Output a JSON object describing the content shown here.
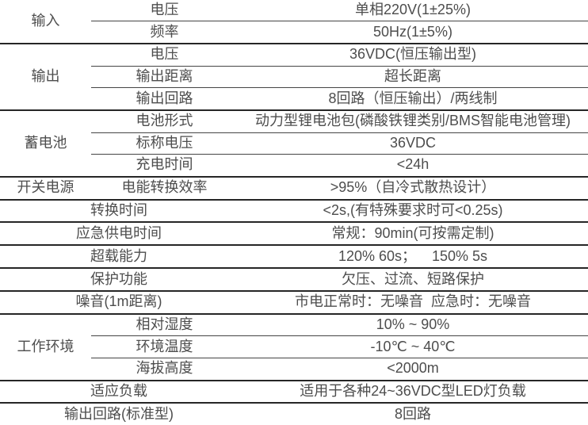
{
  "colors": {
    "background": "#ffffff",
    "text": "#4d4d4d",
    "rule_inner": "#454545",
    "rule_group": "#262626"
  },
  "table": {
    "type": "table",
    "description_columns": [
      "category",
      "parameter",
      "value"
    ],
    "rows": [
      {
        "category": "输入",
        "category_rowspan": 2,
        "param": "电压",
        "value": "单相220V(1±25%)",
        "group_end": false
      },
      {
        "param": "频率",
        "value": "50Hz(1±5%)",
        "group_end": true
      },
      {
        "category": "输出",
        "category_rowspan": 3,
        "param": "电压",
        "value": "36VDC(恒压输出型)",
        "group_end": false
      },
      {
        "param": "输出距离",
        "value": "超长距离",
        "group_end": false
      },
      {
        "param": "输出回路",
        "value": "8回路（恒压输出）/两线制",
        "group_end": true
      },
      {
        "category": "蓄电池",
        "category_rowspan": 3,
        "param": "电池形式",
        "value": "动力型锂电池包(磷酸铁锂类别/BMS智能电池管理)",
        "group_end": false
      },
      {
        "param": "标称电压",
        "value": "36VDC",
        "group_end": false
      },
      {
        "param": "充电时间",
        "value": "<24h",
        "group_end": true
      },
      {
        "category": "开关电源",
        "category_rowspan": 1,
        "param": "电能转换效率",
        "value": ">95%（自冷式散热设计）",
        "group_end": true
      },
      {
        "param": "转换时间",
        "merged": true,
        "value": "<2s,(有特殊要求时可<0.25s)",
        "group_end": true
      },
      {
        "param": "应急供电时间",
        "merged": true,
        "value": "常规：90min(可按需定制)",
        "group_end": true
      },
      {
        "param": "超载能力",
        "merged": true,
        "value": "120% 60s；    150% 5s",
        "group_end": true
      },
      {
        "param": "保护功能",
        "merged": true,
        "value": "欠压、过流、短路保护",
        "group_end": true
      },
      {
        "param": "噪音(1m距离)",
        "merged": true,
        "value": "市电正常时：无噪音  应急时：无噪音",
        "group_end": true
      },
      {
        "category": "工作环境",
        "category_rowspan": 3,
        "param": "相对湿度",
        "value": "10% ~ 90%",
        "group_end": false
      },
      {
        "param": "环境温度",
        "value": "-10℃ ~ 40℃",
        "group_end": false
      },
      {
        "param": "海拔高度",
        "value": "<2000m",
        "group_end": true
      },
      {
        "param": "适应负载",
        "merged": true,
        "value": "适用于各种24~36VDC型LED灯负载",
        "group_end": true
      },
      {
        "param": "输出回路(标准型)",
        "merged": true,
        "value": "8回路",
        "group_end": false,
        "last": true
      }
    ]
  }
}
